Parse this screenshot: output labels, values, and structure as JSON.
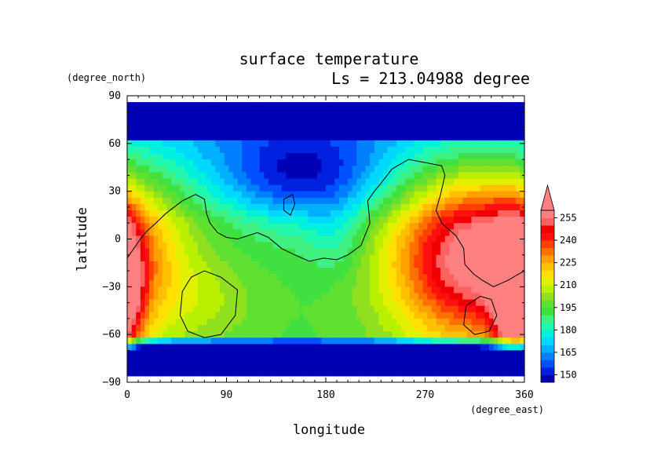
{
  "chart_data": {
    "type": "heatmap",
    "title": "surface temperature",
    "subtitle": "Ls = 213.04988 degree",
    "xlabel": "longitude",
    "ylabel": "latitude",
    "x_unit": "(degree_east)",
    "y_unit": "(degree_north)",
    "xlim": [
      0,
      360
    ],
    "ylim": [
      -90,
      90
    ],
    "x_ticks": [
      "0",
      "90",
      "180",
      "270",
      "360"
    ],
    "x_tick_values": [
      0,
      90,
      180,
      270,
      360
    ],
    "y_ticks": [
      "90",
      "60",
      "30",
      "0",
      "−30",
      "−60",
      "−90"
    ],
    "y_tick_values": [
      90,
      60,
      30,
      0,
      -30,
      -60,
      -90
    ],
    "colorbar": {
      "labels": [
        "255",
        "240",
        "225",
        "210",
        "195",
        "180",
        "165",
        "150"
      ],
      "label_values": [
        255,
        240,
        225,
        210,
        195,
        180,
        165,
        150
      ],
      "levels": [
        145,
        150,
        155,
        160,
        165,
        170,
        175,
        180,
        185,
        190,
        195,
        200,
        205,
        210,
        215,
        220,
        225,
        230,
        235,
        240,
        245,
        250,
        255,
        260
      ],
      "colors": [
        "#0000b4",
        "#0020e0",
        "#0050ff",
        "#0080ff",
        "#00b0ff",
        "#00d8ff",
        "#00f0e0",
        "#20f8b0",
        "#40f080",
        "#40e040",
        "#60e030",
        "#90e020",
        "#b8f000",
        "#e0f000",
        "#ffe000",
        "#ffc000",
        "#ffa000",
        "#ff7000",
        "#ff4000",
        "#ff1010",
        "#f00000",
        "#ff6060",
        "#ff8080"
      ],
      "over_color": "#ff8080"
    },
    "grid": false
  }
}
